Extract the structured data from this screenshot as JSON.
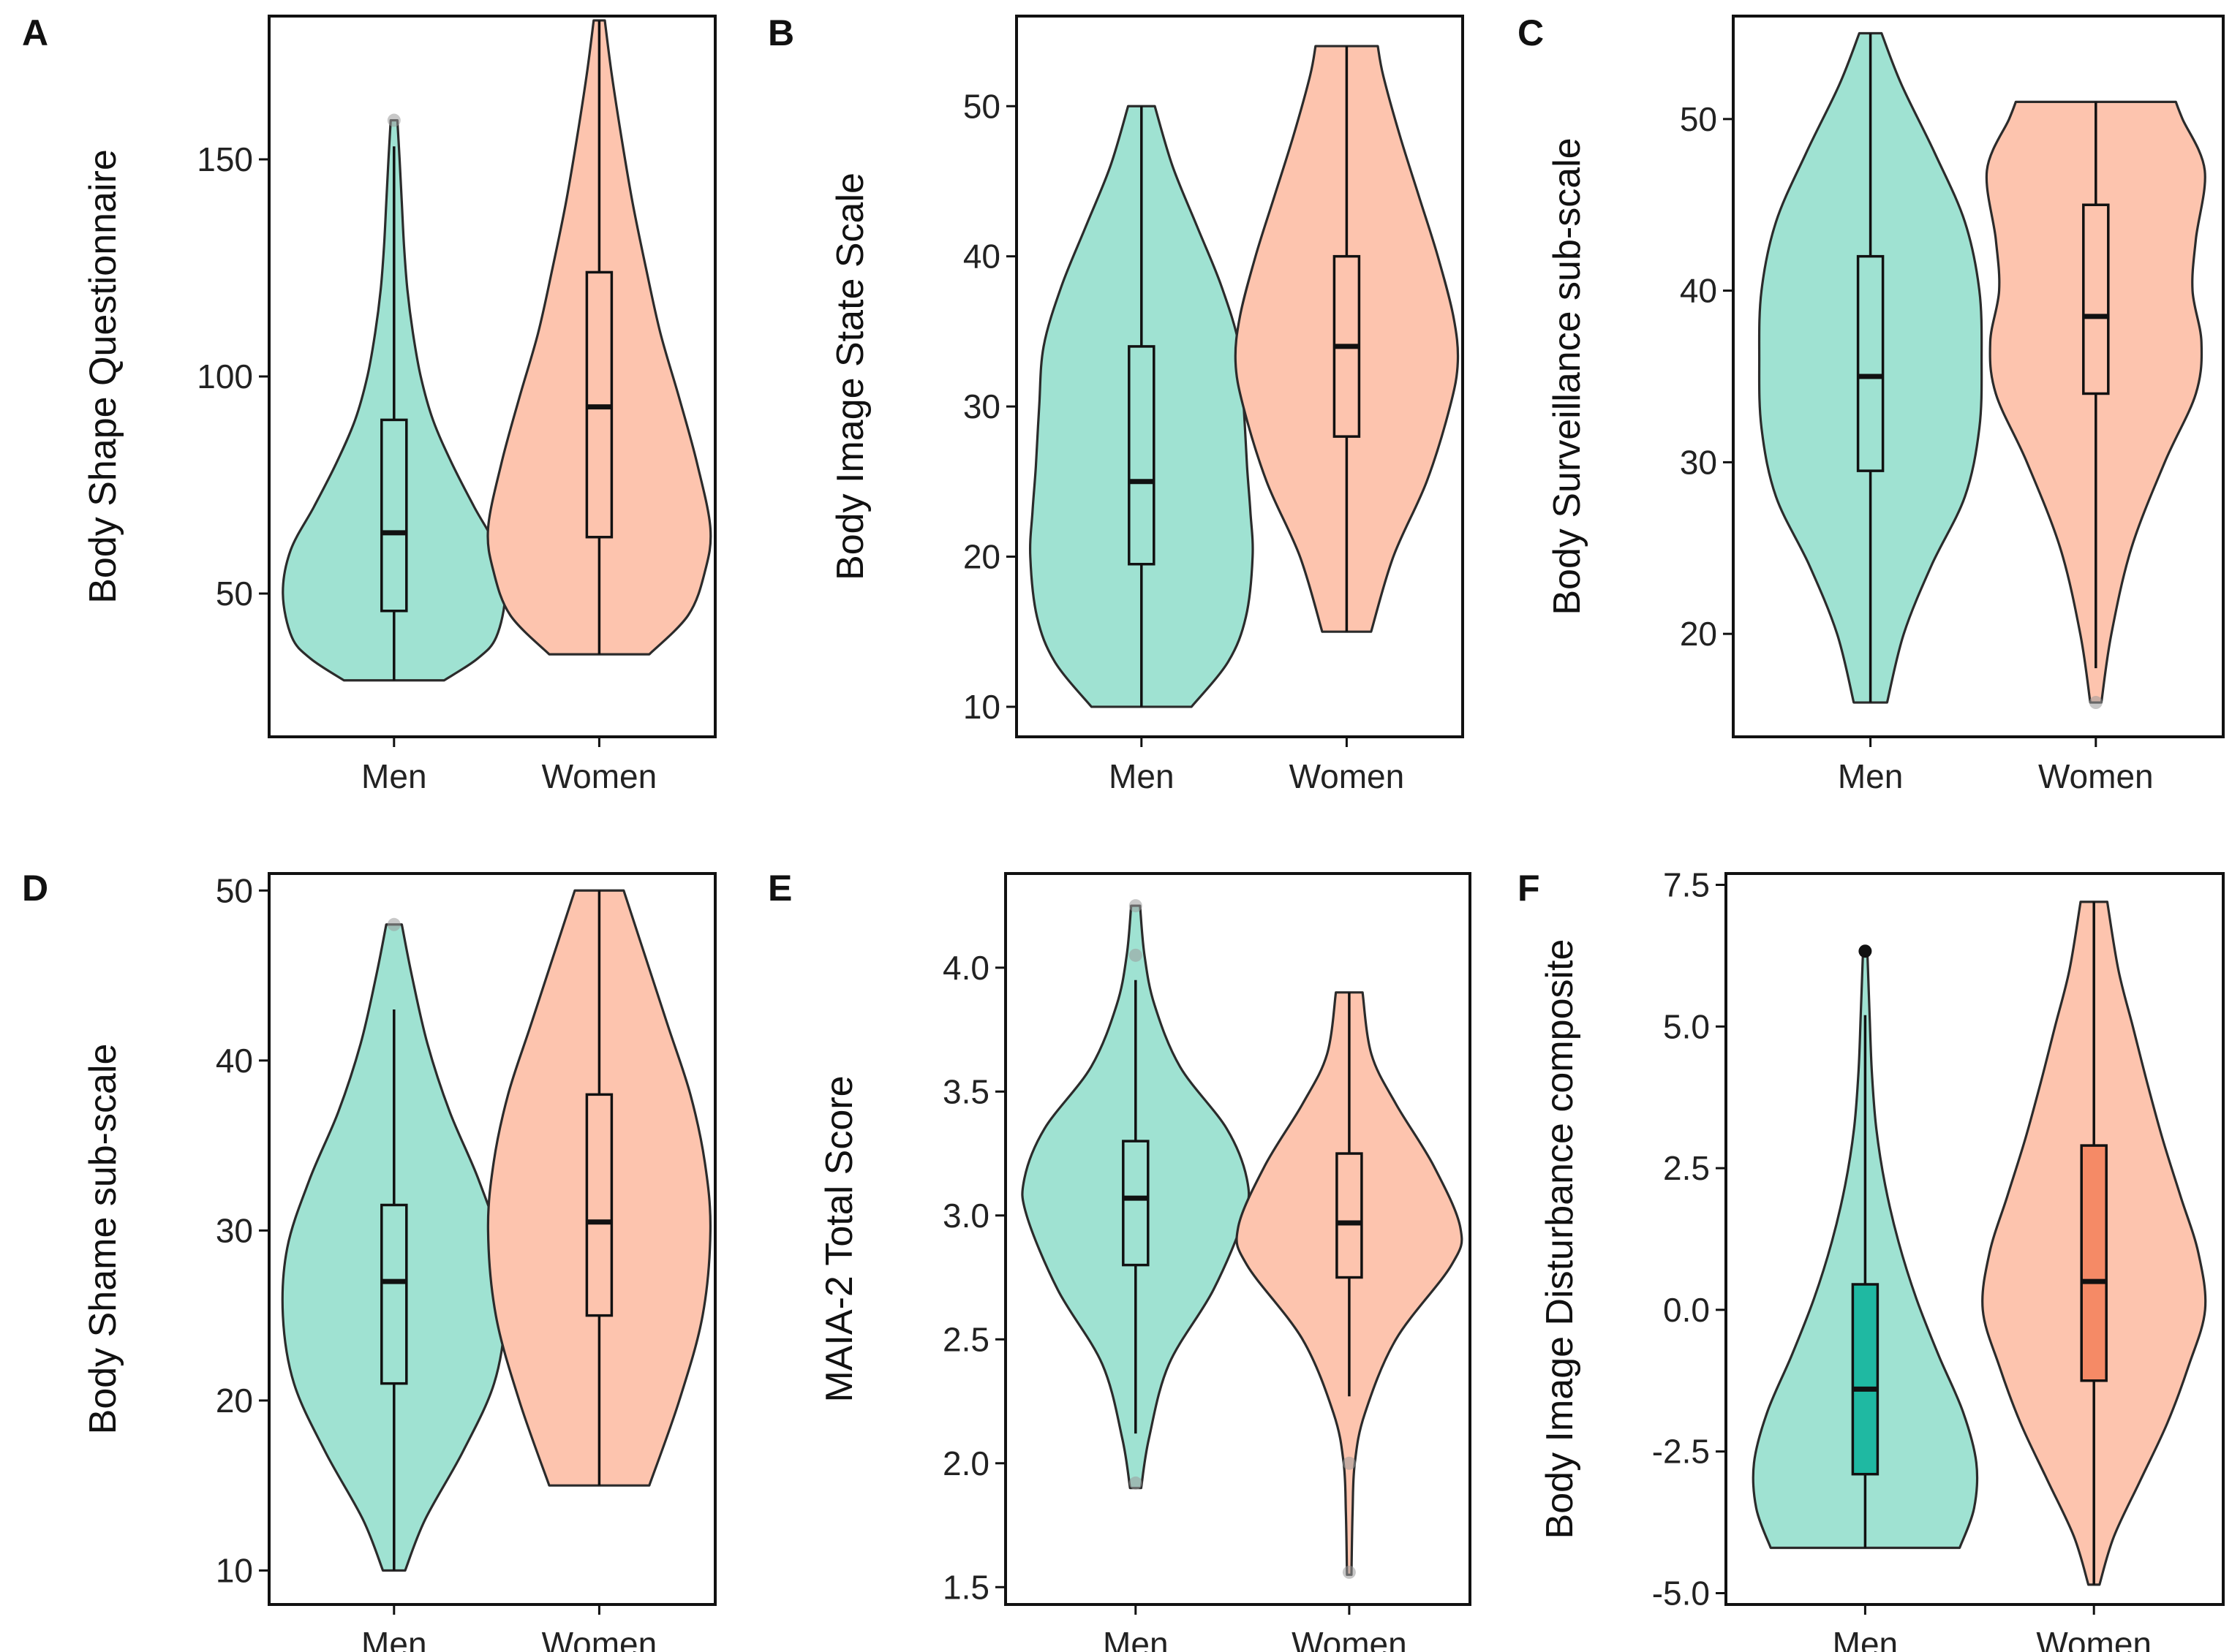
{
  "colors": {
    "men_fill": "#9FE2D2",
    "women_fill": "#FDC4AE",
    "men_box_highlight": "#1FB9A2",
    "women_box_highlight": "#F58A66",
    "outline": "#2B2B2B"
  },
  "chart_data": [
    {
      "panel": "A",
      "type": "violin",
      "ylabel": "Body Shape Questionnaire",
      "categories": [
        "Men",
        "Women"
      ],
      "ylim": [
        17,
        183
      ],
      "yticks": [
        50,
        100,
        150
      ],
      "ytick_labels": [
        "50",
        "100",
        "150"
      ],
      "series": [
        {
          "name": "Men",
          "min": 30,
          "max": 159,
          "q1": 46,
          "median": 64,
          "q3": 90,
          "whisker_low": 30,
          "whisker_high": 153,
          "profile": [
            [
              30,
              0.45
            ],
            [
              35,
              0.75
            ],
            [
              40,
              0.92
            ],
            [
              50,
              1.0
            ],
            [
              60,
              0.93
            ],
            [
              70,
              0.72
            ],
            [
              80,
              0.52
            ],
            [
              90,
              0.35
            ],
            [
              100,
              0.24
            ],
            [
              110,
              0.17
            ],
            [
              120,
              0.12
            ],
            [
              130,
              0.09
            ],
            [
              140,
              0.07
            ],
            [
              150,
              0.05
            ],
            [
              159,
              0.03
            ]
          ],
          "outliers": [
            159
          ]
        },
        {
          "name": "Women",
          "min": 36,
          "max": 182,
          "q1": 63,
          "median": 93,
          "q3": 124,
          "whisker_low": 36,
          "whisker_high": 182,
          "profile": [
            [
              36,
              0.45
            ],
            [
              45,
              0.8
            ],
            [
              55,
              0.95
            ],
            [
              65,
              1.0
            ],
            [
              80,
              0.88
            ],
            [
              95,
              0.72
            ],
            [
              110,
              0.55
            ],
            [
              125,
              0.42
            ],
            [
              140,
              0.3
            ],
            [
              155,
              0.2
            ],
            [
              170,
              0.11
            ],
            [
              182,
              0.05
            ]
          ],
          "outliers": []
        }
      ]
    },
    {
      "panel": "B",
      "type": "violin",
      "ylabel": "Body Image State Scale",
      "categories": [
        "Men",
        "Women"
      ],
      "ylim": [
        8,
        56
      ],
      "yticks": [
        10,
        20,
        30,
        40,
        50
      ],
      "ytick_labels": [
        "10",
        "20",
        "30",
        "40",
        "50"
      ],
      "series": [
        {
          "name": "Men",
          "min": 10,
          "max": 50,
          "q1": 19.5,
          "median": 25,
          "q3": 34,
          "whisker_low": 10,
          "whisker_high": 50,
          "profile": [
            [
              10,
              0.45
            ],
            [
              13,
              0.78
            ],
            [
              16,
              0.94
            ],
            [
              20,
              1.0
            ],
            [
              23,
              0.98
            ],
            [
              26,
              0.95
            ],
            [
              30,
              0.92
            ],
            [
              34,
              0.88
            ],
            [
              38,
              0.72
            ],
            [
              42,
              0.5
            ],
            [
              46,
              0.28
            ],
            [
              50,
              0.12
            ]
          ],
          "outliers": []
        },
        {
          "name": "Women",
          "min": 15,
          "max": 54,
          "q1": 28,
          "median": 34,
          "q3": 40,
          "whisker_low": 15,
          "whisker_high": 54,
          "profile": [
            [
              15,
              0.22
            ],
            [
              20,
              0.42
            ],
            [
              25,
              0.72
            ],
            [
              30,
              0.93
            ],
            [
              33,
              1.0
            ],
            [
              36,
              0.96
            ],
            [
              40,
              0.82
            ],
            [
              44,
              0.65
            ],
            [
              48,
              0.48
            ],
            [
              52,
              0.33
            ],
            [
              54,
              0.28
            ]
          ],
          "outliers": []
        }
      ]
    },
    {
      "panel": "C",
      "type": "violin",
      "ylabel": "Body Surveillance sub-scale",
      "categories": [
        "Men",
        "Women"
      ],
      "ylim": [
        14,
        56
      ],
      "yticks": [
        20,
        30,
        40,
        50
      ],
      "ytick_labels": [
        "20",
        "30",
        "40",
        "50"
      ],
      "series": [
        {
          "name": "Men",
          "min": 16,
          "max": 55,
          "q1": 29.5,
          "median": 35,
          "q3": 42,
          "whisker_low": 16,
          "whisker_high": 55,
          "profile": [
            [
              16,
              0.15
            ],
            [
              20,
              0.3
            ],
            [
              24,
              0.55
            ],
            [
              28,
              0.85
            ],
            [
              32,
              0.98
            ],
            [
              36,
              1.0
            ],
            [
              40,
              0.98
            ],
            [
              44,
              0.85
            ],
            [
              48,
              0.58
            ],
            [
              52,
              0.28
            ],
            [
              55,
              0.1
            ]
          ],
          "outliers": []
        },
        {
          "name": "Women",
          "min": 16,
          "max": 51,
          "q1": 34,
          "median": 38.5,
          "q3": 45,
          "whisker_low": 18,
          "whisker_high": 51,
          "profile": [
            [
              16,
              0.05
            ],
            [
              20,
              0.14
            ],
            [
              25,
              0.32
            ],
            [
              30,
              0.62
            ],
            [
              34,
              0.9
            ],
            [
              37,
              0.95
            ],
            [
              40,
              0.87
            ],
            [
              43,
              0.9
            ],
            [
              47,
              0.98
            ],
            [
              50,
              0.78
            ],
            [
              51,
              0.72
            ]
          ],
          "outliers": [
            16
          ]
        }
      ]
    },
    {
      "panel": "D",
      "type": "violin",
      "ylabel": "Body Shame sub-scale",
      "categories": [
        "Men",
        "Women"
      ],
      "ylim": [
        8,
        51
      ],
      "yticks": [
        10,
        20,
        30,
        40,
        50
      ],
      "ytick_labels": [
        "10",
        "20",
        "30",
        "40",
        "50"
      ],
      "series": [
        {
          "name": "Men",
          "min": 10,
          "max": 48,
          "q1": 21,
          "median": 27,
          "q3": 31.5,
          "whisker_low": 10,
          "whisker_high": 43,
          "profile": [
            [
              10,
              0.1
            ],
            [
              13,
              0.28
            ],
            [
              17,
              0.62
            ],
            [
              21,
              0.9
            ],
            [
              25,
              1.0
            ],
            [
              29,
              0.96
            ],
            [
              33,
              0.76
            ],
            [
              37,
              0.5
            ],
            [
              41,
              0.3
            ],
            [
              45,
              0.16
            ],
            [
              48,
              0.07
            ]
          ],
          "outliers": [
            48
          ]
        },
        {
          "name": "Women",
          "min": 15,
          "max": 50,
          "q1": 25,
          "median": 30.5,
          "q3": 38,
          "whisker_low": 15,
          "whisker_high": 50,
          "profile": [
            [
              15,
              0.45
            ],
            [
              20,
              0.72
            ],
            [
              25,
              0.93
            ],
            [
              30,
              1.0
            ],
            [
              34,
              0.95
            ],
            [
              38,
              0.82
            ],
            [
              42,
              0.62
            ],
            [
              46,
              0.42
            ],
            [
              50,
              0.22
            ]
          ],
          "outliers": []
        }
      ]
    },
    {
      "panel": "E",
      "type": "violin",
      "ylabel": "MAIA-2 Total Score",
      "categories": [
        "Men",
        "Women"
      ],
      "ylim": [
        1.43,
        4.38
      ],
      "yticks": [
        1.5,
        2.0,
        2.5,
        3.0,
        3.5,
        4.0
      ],
      "ytick_labels": [
        "1.5",
        "2.0",
        "2.5",
        "3.0",
        "3.5",
        "4.0"
      ],
      "series": [
        {
          "name": "Men",
          "min": 1.9,
          "max": 4.25,
          "q1": 2.8,
          "median": 3.07,
          "q3": 3.3,
          "whisker_low": 2.12,
          "whisker_high": 3.95,
          "profile": [
            [
              1.9,
              0.05
            ],
            [
              2.1,
              0.12
            ],
            [
              2.4,
              0.3
            ],
            [
              2.7,
              0.7
            ],
            [
              3.0,
              0.98
            ],
            [
              3.15,
              1.0
            ],
            [
              3.35,
              0.82
            ],
            [
              3.6,
              0.4
            ],
            [
              3.85,
              0.17
            ],
            [
              4.05,
              0.08
            ],
            [
              4.25,
              0.04
            ]
          ],
          "outliers": [
            1.92,
            4.05,
            4.25
          ]
        },
        {
          "name": "Women",
          "min": 1.55,
          "max": 3.9,
          "q1": 2.75,
          "median": 2.97,
          "q3": 3.25,
          "whisker_low": 2.27,
          "whisker_high": 3.9,
          "profile": [
            [
              1.55,
              0.02
            ],
            [
              1.8,
              0.03
            ],
            [
              2.0,
              0.05
            ],
            [
              2.2,
              0.14
            ],
            [
              2.5,
              0.42
            ],
            [
              2.8,
              0.92
            ],
            [
              2.95,
              1.0
            ],
            [
              3.2,
              0.76
            ],
            [
              3.45,
              0.42
            ],
            [
              3.65,
              0.2
            ],
            [
              3.9,
              0.12
            ]
          ],
          "outliers": [
            1.56,
            2.0
          ]
        }
      ]
    },
    {
      "panel": "F",
      "type": "violin",
      "ylabel": "Body Image Disturbance composite",
      "categories": [
        "Men",
        "Women"
      ],
      "ylim": [
        -5.2,
        7.7
      ],
      "yticks": [
        -5.0,
        -2.5,
        0.0,
        2.5,
        5.0,
        7.5
      ],
      "ytick_labels": [
        "-5.0",
        "-2.5",
        "0.0",
        "2.5",
        "5.0",
        "7.5"
      ],
      "series": [
        {
          "name": "Men",
          "min": -4.2,
          "max": 6.3,
          "q1": -2.9,
          "median": -1.4,
          "q3": 0.45,
          "whisker_low": -4.2,
          "whisker_high": 5.2,
          "profile": [
            [
              -4.2,
              0.85
            ],
            [
              -3.5,
              0.98
            ],
            [
              -2.7,
              1.0
            ],
            [
              -1.8,
              0.88
            ],
            [
              -0.8,
              0.66
            ],
            [
              0.2,
              0.46
            ],
            [
              1.2,
              0.3
            ],
            [
              2.2,
              0.18
            ],
            [
              3.2,
              0.1
            ],
            [
              4.2,
              0.06
            ],
            [
              5.2,
              0.04
            ],
            [
              6.3,
              0.02
            ]
          ],
          "outliers": [
            6.33
          ]
        },
        {
          "name": "Women",
          "min": -4.85,
          "max": 7.2,
          "q1": -1.25,
          "median": 0.5,
          "q3": 2.9,
          "whisker_low": -4.85,
          "whisker_high": 7.2,
          "profile": [
            [
              -4.85,
              0.05
            ],
            [
              -4.0,
              0.18
            ],
            [
              -3.0,
              0.42
            ],
            [
              -2.0,
              0.66
            ],
            [
              -1.0,
              0.85
            ],
            [
              0.0,
              1.0
            ],
            [
              1.0,
              0.94
            ],
            [
              2.0,
              0.78
            ],
            [
              3.0,
              0.62
            ],
            [
              4.0,
              0.48
            ],
            [
              5.0,
              0.35
            ],
            [
              6.0,
              0.22
            ],
            [
              7.2,
              0.12
            ]
          ],
          "outliers": []
        }
      ]
    }
  ]
}
